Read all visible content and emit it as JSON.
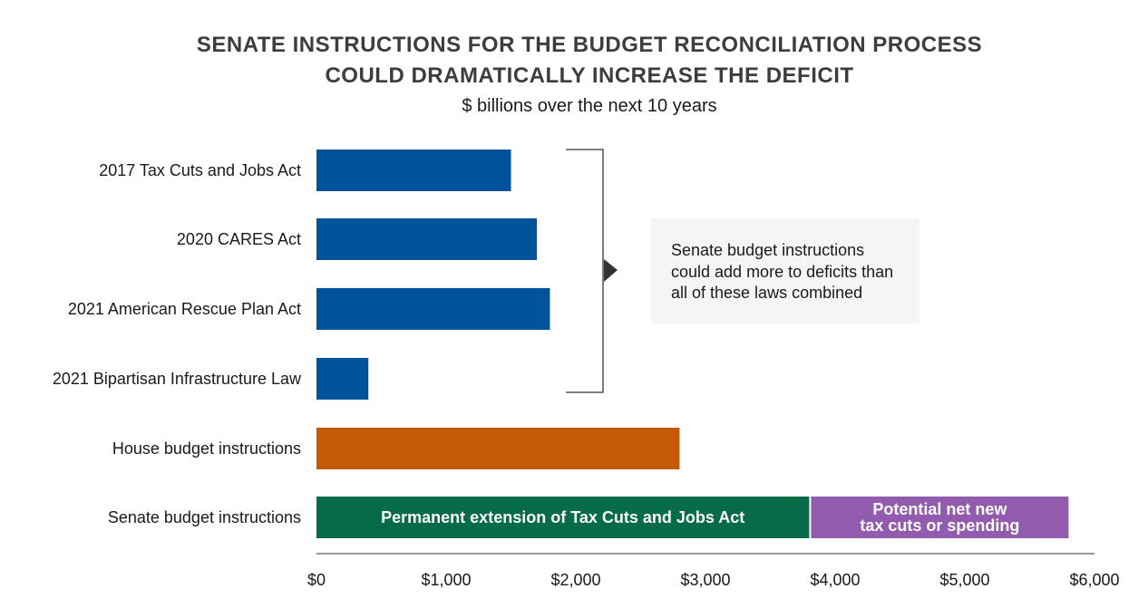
{
  "title_line1": "SENATE INSTRUCTIONS FOR THE BUDGET RECONCILIATION PROCESS",
  "title_line2": "COULD DRAMATICALLY INCREASE THE DEFICIT",
  "subtitle": "$ billions over the next 10 years",
  "callout": "Senate budget instructions could add more to deficits than all of these laws combined",
  "colors": {
    "blue": "#00529b",
    "orange": "#c55a06",
    "green": "#066c47",
    "purple": "#935bae"
  },
  "chart_data": {
    "type": "bar",
    "orientation": "horizontal",
    "categories": [
      "2017 Tax Cuts and Jobs Act",
      "2020 CARES Act",
      "2021 American Rescue Plan Act",
      "2021 Bipartisan Infrastructure Law",
      "House budget instructions",
      "Senate budget instructions"
    ],
    "series": [
      {
        "name": "Deficit impact",
        "values": [
          1500,
          1700,
          1800,
          400,
          2800,
          null
        ]
      },
      {
        "name": "Permanent extension of Tax Cuts and Jobs Act",
        "values": [
          null,
          null,
          null,
          null,
          null,
          3800
        ]
      },
      {
        "name": "Potential net new tax cuts or spending",
        "values": [
          null,
          null,
          null,
          null,
          null,
          2000
        ]
      }
    ],
    "segment_labels": [
      "Permanent extension of Tax Cuts and Jobs Act",
      [
        "Potential net new",
        "tax cuts or spending"
      ]
    ],
    "xlim": [
      0,
      6000
    ],
    "xticks": [
      0,
      1000,
      2000,
      3000,
      4000,
      5000,
      6000
    ],
    "xtick_labels": [
      "$0",
      "$1,000",
      "$2,000",
      "$3,000",
      "$4,000",
      "$5,000",
      "$6,000"
    ],
    "bracket_groups": "first four categories"
  }
}
